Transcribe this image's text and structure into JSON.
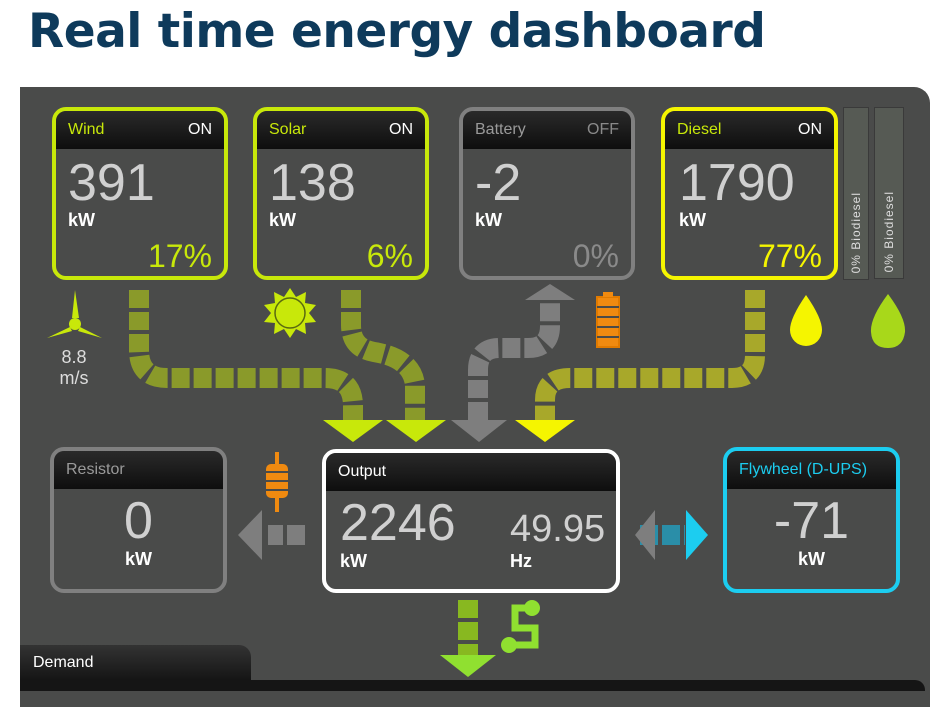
{
  "title": "Real time energy dashboard",
  "sources": [
    {
      "name": "Wind",
      "state": "ON",
      "value": "391",
      "unit": "kW",
      "pct": "17%",
      "color": "#c8e80a"
    },
    {
      "name": "Solar",
      "state": "ON",
      "value": "138",
      "unit": "kW",
      "pct": "6%",
      "color": "#c8e80a"
    },
    {
      "name": "Battery",
      "state": "OFF",
      "value": "-2",
      "unit": "kW",
      "pct": "0%",
      "color": "#808080"
    },
    {
      "name": "Diesel",
      "state": "ON",
      "value": "1790",
      "unit": "kW",
      "pct": "77%",
      "color": "#f5f500"
    }
  ],
  "wind_speed": {
    "value": "8.8",
    "unit": "m/s"
  },
  "biodiesel": [
    "0% Biodiesel",
    "0% Biodiesel"
  ],
  "resistor": {
    "name": "Resistor",
    "value": "0",
    "unit": "kW",
    "color": "#808080"
  },
  "output": {
    "name": "Output",
    "value": "2246",
    "unit": "kW",
    "freq": "49.95",
    "freq_unit": "Hz",
    "color": "#ffffff"
  },
  "flywheel": {
    "name": "Flywheel (D-UPS)",
    "value": "-71",
    "unit": "kW",
    "color": "#1ccdf0"
  },
  "demand": {
    "label": "Demand"
  },
  "icons": [
    "wind-turbine-icon",
    "sun-icon",
    "battery-icon",
    "fuel-drop-icon",
    "leaf-icon",
    "resistor-icon",
    "grid-icon"
  ]
}
